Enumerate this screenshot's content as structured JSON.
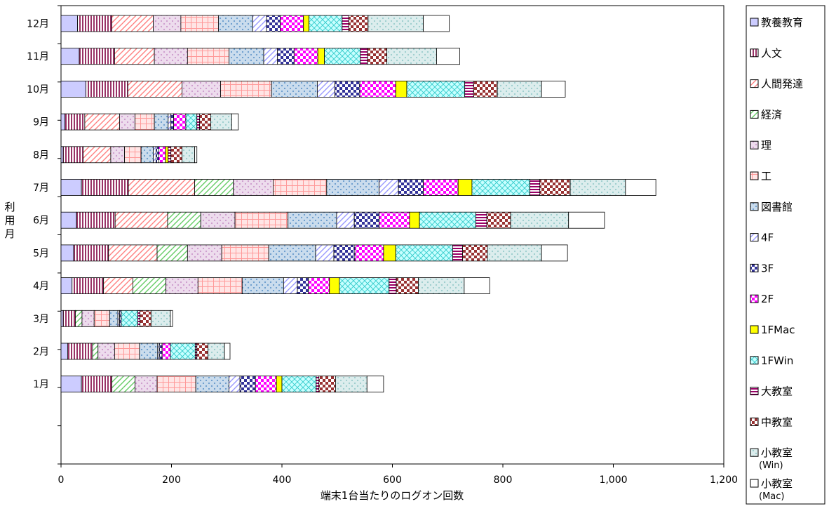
{
  "chart_data": {
    "type": "bar",
    "orientation": "horizontal",
    "stacked": true,
    "xlabel": "端末1台当たりのログオン回数",
    "ylabel": "利用月",
    "xlim": [
      0,
      1200
    ],
    "xticks": [
      "0",
      "200",
      "400",
      "600",
      "800",
      "1,000",
      "1,200"
    ],
    "grid": false,
    "legend_position": "right",
    "categories": [
      "12月",
      "11月",
      "10月",
      "9月",
      "8月",
      "7月",
      "6月",
      "5月",
      "4月",
      "3月",
      "2月",
      "1月"
    ],
    "series": [
      {
        "name": "教養教育",
        "label_lines": [
          "教養教育"
        ],
        "color": "#ccccff",
        "pattern": "solid",
        "values": [
          30,
          33,
          45,
          7,
          4,
          37,
          28,
          23,
          20,
          4,
          12,
          37
        ]
      },
      {
        "name": "人文",
        "label_lines": [
          "人文"
        ],
        "color": "#993366",
        "pattern": "vlines",
        "values": [
          62,
          64,
          76,
          36,
          36,
          85,
          70,
          63,
          57,
          22,
          45,
          55
        ]
      },
      {
        "name": "人間発達",
        "label_lines": [
          "人間発達"
        ],
        "color": "#ff8080",
        "pattern": "diag",
        "values": [
          75,
          72,
          98,
          63,
          50,
          120,
          95,
          88,
          53,
          0,
          0,
          0
        ]
      },
      {
        "name": "経済",
        "label_lines": [
          "経済"
        ],
        "color": "#66cc66",
        "pattern": "diag",
        "values": [
          0,
          0,
          0,
          0,
          0,
          70,
          60,
          55,
          60,
          12,
          10,
          42
        ]
      },
      {
        "name": "理",
        "label_lines": [
          "理"
        ],
        "color": "#cc99cc",
        "pattern": "dots",
        "values": [
          50,
          60,
          70,
          28,
          25,
          72,
          62,
          62,
          58,
          22,
          30,
          40
        ]
      },
      {
        "name": "工",
        "label_lines": [
          "工"
        ],
        "color": "#ff9999",
        "pattern": "grid",
        "values": [
          68,
          75,
          92,
          35,
          30,
          97,
          96,
          85,
          80,
          28,
          45,
          70
        ]
      },
      {
        "name": "図書館",
        "label_lines": [
          "図書館"
        ],
        "color": "#6699cc",
        "pattern": "dots",
        "values": [
          62,
          63,
          83,
          25,
          22,
          95,
          88,
          85,
          75,
          15,
          33,
          60
        ]
      },
      {
        "name": "4F",
        "label_lines": [
          "4F"
        ],
        "color": "#9999ff",
        "pattern": "diag",
        "values": [
          25,
          25,
          32,
          5,
          5,
          35,
          32,
          33,
          25,
          3,
          3,
          20
        ]
      },
      {
        "name": "3F",
        "label_lines": [
          "3F"
        ],
        "color": "#333399",
        "pattern": "check",
        "values": [
          25,
          30,
          45,
          5,
          5,
          45,
          45,
          38,
          20,
          3,
          5,
          28
        ]
      },
      {
        "name": "2F",
        "label_lines": [
          "2F"
        ],
        "color": "#ff00ff",
        "pattern": "check",
        "values": [
          42,
          43,
          65,
          22,
          12,
          63,
          55,
          52,
          38,
          0,
          15,
          38
        ]
      },
      {
        "name": "1FMac",
        "label_lines": [
          "1FMac"
        ],
        "color": "#ffff00",
        "pattern": "solid",
        "values": [
          10,
          12,
          20,
          0,
          5,
          25,
          18,
          22,
          18,
          0,
          0,
          10
        ]
      },
      {
        "name": "1FWin",
        "label_lines": [
          "1FWin"
        ],
        "color": "#99ffff",
        "pattern": "cross",
        "values": [
          60,
          65,
          105,
          20,
          0,
          105,
          102,
          103,
          90,
          30,
          45,
          62
        ]
      },
      {
        "name": "大教室",
        "label_lines": [
          "大教室"
        ],
        "color": "#990066",
        "pattern": "hlines",
        "values": [
          12,
          13,
          16,
          5,
          5,
          18,
          20,
          18,
          13,
          4,
          3,
          5
        ]
      },
      {
        "name": "中教室",
        "label_lines": [
          "中教室"
        ],
        "color": "#993333",
        "pattern": "check",
        "values": [
          35,
          35,
          43,
          20,
          20,
          55,
          43,
          45,
          40,
          20,
          20,
          30
        ]
      },
      {
        "name": "小教室(Win)",
        "label_lines": [
          "小教室",
          "(Win)"
        ],
        "color": "#99cccc",
        "pattern": "dots",
        "values": [
          100,
          90,
          80,
          38,
          23,
          100,
          105,
          98,
          83,
          35,
          30,
          57
        ]
      },
      {
        "name": "小教室(Mac)",
        "label_lines": [
          "小教室",
          "(Mac)"
        ],
        "color": "#ffffff",
        "pattern": "solid",
        "values": [
          47,
          42,
          43,
          12,
          4,
          55,
          65,
          47,
          46,
          4,
          10,
          30
        ]
      }
    ]
  }
}
